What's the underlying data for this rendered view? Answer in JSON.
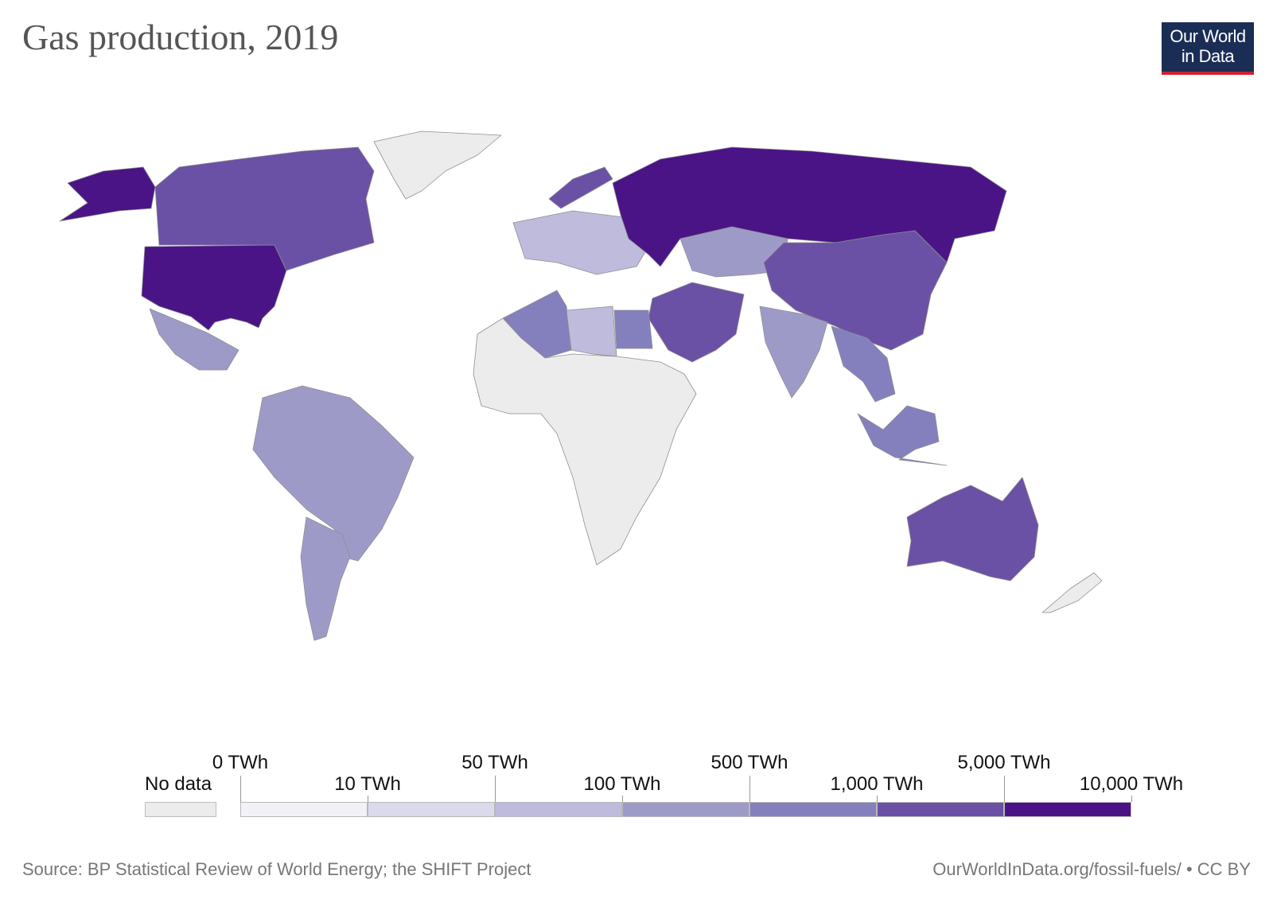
{
  "title": "Gas production, 2019",
  "logo": {
    "line1": "Our World",
    "line2": "in Data"
  },
  "legend": {
    "no_data_label": "No data",
    "stops": [
      {
        "label": "0 TWh",
        "row": "top"
      },
      {
        "label": "10 TWh",
        "row": "bottom"
      },
      {
        "label": "50 TWh",
        "row": "top"
      },
      {
        "label": "100 TWh",
        "row": "bottom"
      },
      {
        "label": "500 TWh",
        "row": "top"
      },
      {
        "label": "1,000 TWh",
        "row": "bottom"
      },
      {
        "label": "5,000 TWh",
        "row": "top"
      },
      {
        "label": "10,000 TWh",
        "row": "bottom"
      }
    ],
    "bin_colors": [
      "#f2f1f8",
      "#dbd9ec",
      "#bebbdc",
      "#9e9ac8",
      "#8480bd",
      "#6b51a5",
      "#4a1486"
    ],
    "no_data_color": "#ececec"
  },
  "map_regions": [
    {
      "region": "United States",
      "bin": 6
    },
    {
      "region": "Alaska",
      "bin": 6
    },
    {
      "region": "Canada",
      "bin": 5
    },
    {
      "region": "Greenland",
      "bin": -1
    },
    {
      "region": "Mexico",
      "bin": 3
    },
    {
      "region": "South America north",
      "bin": 3
    },
    {
      "region": "Argentina",
      "bin": 3
    },
    {
      "region": "Europe",
      "bin": 2
    },
    {
      "region": "Norway",
      "bin": 5
    },
    {
      "region": "Russia",
      "bin": 6
    },
    {
      "region": "Central Asia",
      "bin": 3
    },
    {
      "region": "China",
      "bin": 5
    },
    {
      "region": "Middle East",
      "bin": 5
    },
    {
      "region": "Algeria",
      "bin": 4
    },
    {
      "region": "Libya",
      "bin": 2
    },
    {
      "region": "Egypt",
      "bin": 4
    },
    {
      "region": "Nigeria",
      "bin": 3
    },
    {
      "region": "Africa other",
      "bin": -1
    },
    {
      "region": "India",
      "bin": 3
    },
    {
      "region": "Southeast Asia",
      "bin": 4
    },
    {
      "region": "Indonesia",
      "bin": 4
    },
    {
      "region": "Australia",
      "bin": 5
    },
    {
      "region": "New Zealand",
      "bin": -1
    }
  ],
  "footer": {
    "source": "Source: BP Statistical Review of World Energy; the SHIFT Project",
    "link": "OurWorldInData.org/fossil-fuels/ • CC BY"
  }
}
